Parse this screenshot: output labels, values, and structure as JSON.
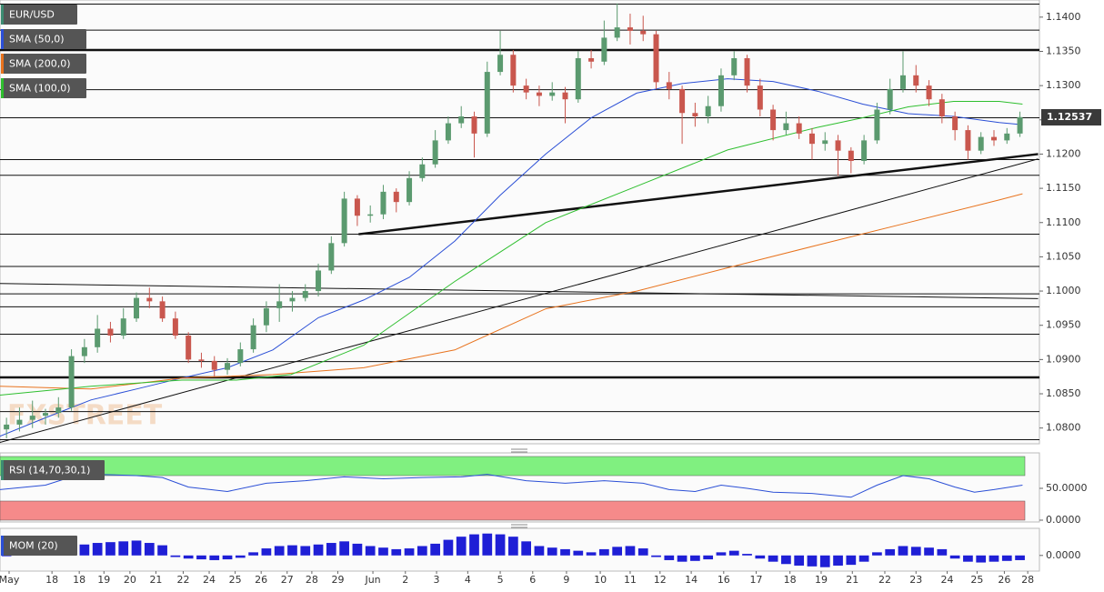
{
  "chart_data": [
    {
      "type": "candlestick",
      "title": "EUR/USD",
      "watermark": "FXSTREET",
      "xlim": [
        -0.5,
        79.5
      ],
      "xticks": [
        {
          "value": 0.2,
          "label": "May"
        },
        {
          "value": 3.5,
          "label": "18"
        },
        {
          "value": 5.6,
          "label": "18"
        },
        {
          "value": 7.5,
          "label": "19"
        },
        {
          "value": 9.5,
          "label": "20"
        },
        {
          "value": 11.5,
          "label": "21"
        },
        {
          "value": 13.6,
          "label": "22"
        },
        {
          "value": 15.6,
          "label": "24"
        },
        {
          "value": 17.6,
          "label": "25"
        },
        {
          "value": 19.6,
          "label": "26"
        },
        {
          "value": 21.6,
          "label": "27"
        },
        {
          "value": 23.5,
          "label": "28"
        },
        {
          "value": 25.5,
          "label": "29"
        },
        {
          "value": 28.2,
          "label": "Jun"
        },
        {
          "value": 30.7,
          "label": "2"
        },
        {
          "value": 33.1,
          "label": "3"
        },
        {
          "value": 35.5,
          "label": "4"
        },
        {
          "value": 38,
          "label": "5"
        },
        {
          "value": 40.5,
          "label": "6"
        },
        {
          "value": 43.1,
          "label": "9"
        },
        {
          "value": 45.7,
          "label": "10"
        },
        {
          "value": 48,
          "label": "11"
        },
        {
          "value": 50.3,
          "label": "12"
        },
        {
          "value": 52.7,
          "label": "14"
        },
        {
          "value": 55.2,
          "label": "16"
        },
        {
          "value": 57.7,
          "label": "17"
        },
        {
          "value": 60.3,
          "label": "18"
        },
        {
          "value": 62.7,
          "label": "19"
        },
        {
          "value": 65.1,
          "label": "21"
        },
        {
          "value": 67.6,
          "label": "22"
        },
        {
          "value": 70,
          "label": "23"
        },
        {
          "value": 72.4,
          "label": "24"
        },
        {
          "value": 74.7,
          "label": "25"
        },
        {
          "value": 76.8,
          "label": "26"
        },
        {
          "value": 78.6,
          "label": "28"
        }
      ],
      "ylim": [
        1.0777,
        1.1425
      ],
      "yticks": [
        {
          "value": 1.14,
          "label": "1.1400"
        },
        {
          "value": 1.135,
          "label": "1.1350"
        },
        {
          "value": 1.13,
          "label": "1.1300"
        },
        {
          "value": 1.125,
          "label": "1.1250"
        },
        {
          "value": 1.12,
          "label": "1.1200"
        },
        {
          "value": 1.115,
          "label": "1.1150"
        },
        {
          "value": 1.11,
          "label": "1.1100"
        },
        {
          "value": 1.105,
          "label": "1.1050"
        },
        {
          "value": 1.1,
          "label": "1.1000"
        },
        {
          "value": 1.095,
          "label": "1.0950"
        },
        {
          "value": 1.09,
          "label": "1.0900"
        },
        {
          "value": 1.085,
          "label": "1.0850"
        },
        {
          "value": 1.08,
          "label": "1.0800"
        }
      ],
      "up_color": "#5b9a6f",
      "down_color": "#c9574e",
      "ohlc": [
        [
          1.0798,
          1.0815,
          1.0785,
          1.0805
        ],
        [
          1.0805,
          1.083,
          1.0795,
          1.0812
        ],
        [
          1.0812,
          1.084,
          1.08,
          1.0818
        ],
        [
          1.0818,
          1.0828,
          1.0805,
          1.0822
        ],
        [
          1.0822,
          1.0845,
          1.0815,
          1.083
        ],
        [
          1.083,
          1.0915,
          1.0825,
          1.0905
        ],
        [
          1.0905,
          1.093,
          1.0895,
          1.0918
        ],
        [
          1.0918,
          1.0965,
          1.091,
          1.0945
        ],
        [
          1.0945,
          1.0955,
          1.0925,
          1.0935
        ],
        [
          1.0935,
          1.0975,
          1.093,
          1.096
        ],
        [
          1.096,
          1.0998,
          1.0955,
          1.099
        ],
        [
          1.099,
          1.1005,
          1.0975,
          1.0985
        ],
        [
          1.0985,
          1.0992,
          1.0955,
          1.096
        ],
        [
          1.096,
          1.097,
          1.093,
          1.0935
        ],
        [
          1.0935,
          1.094,
          1.0895,
          1.09
        ],
        [
          1.09,
          1.091,
          1.0888,
          1.0898
        ],
        [
          1.0898,
          1.0905,
          1.0875,
          1.0885
        ],
        [
          1.0885,
          1.0902,
          1.0878,
          1.0895
        ],
        [
          1.0895,
          1.0925,
          1.089,
          1.0915
        ],
        [
          1.0915,
          1.096,
          1.091,
          1.095
        ],
        [
          1.095,
          1.0985,
          1.094,
          1.0975
        ],
        [
          1.0975,
          1.101,
          1.0955,
          1.0985
        ],
        [
          1.0985,
          1.1,
          1.097,
          1.099
        ],
        [
          1.099,
          1.101,
          1.0985,
          1.1
        ],
        [
          1.1,
          1.104,
          1.0992,
          1.103
        ],
        [
          1.103,
          1.108,
          1.1025,
          1.107
        ],
        [
          1.107,
          1.1145,
          1.1065,
          1.1135
        ],
        [
          1.1135,
          1.114,
          1.1095,
          1.111
        ],
        [
          1.111,
          1.1125,
          1.11,
          1.1112
        ],
        [
          1.1112,
          1.1155,
          1.1105,
          1.1145
        ],
        [
          1.1145,
          1.115,
          1.1115,
          1.113
        ],
        [
          1.113,
          1.1175,
          1.1125,
          1.1165
        ],
        [
          1.1165,
          1.1195,
          1.116,
          1.1185
        ],
        [
          1.1185,
          1.1235,
          1.118,
          1.122
        ],
        [
          1.122,
          1.1255,
          1.1215,
          1.1245
        ],
        [
          1.1245,
          1.127,
          1.1238,
          1.1255
        ],
        [
          1.1255,
          1.1262,
          1.1195,
          1.123
        ],
        [
          1.123,
          1.1335,
          1.1225,
          1.132
        ],
        [
          1.132,
          1.138,
          1.1315,
          1.1345
        ],
        [
          1.1345,
          1.1352,
          1.129,
          1.13
        ],
        [
          1.13,
          1.131,
          1.128,
          1.129
        ],
        [
          1.129,
          1.13,
          1.127,
          1.1285
        ],
        [
          1.1285,
          1.1305,
          1.1278,
          1.129
        ],
        [
          1.129,
          1.1298,
          1.1245,
          1.128
        ],
        [
          1.128,
          1.135,
          1.1275,
          1.134
        ],
        [
          1.134,
          1.1352,
          1.1325,
          1.1335
        ],
        [
          1.1335,
          1.1395,
          1.133,
          1.137
        ],
        [
          1.137,
          1.142,
          1.1365,
          1.1385
        ],
        [
          1.1385,
          1.1405,
          1.136,
          1.138
        ],
        [
          1.138,
          1.1402,
          1.1365,
          1.1375
        ],
        [
          1.1375,
          1.138,
          1.1295,
          1.1305
        ],
        [
          1.1305,
          1.132,
          1.128,
          1.1295
        ],
        [
          1.1295,
          1.13,
          1.1215,
          1.126
        ],
        [
          1.126,
          1.1275,
          1.124,
          1.1255
        ],
        [
          1.1255,
          1.1285,
          1.1245,
          1.127
        ],
        [
          1.127,
          1.1325,
          1.1262,
          1.1315
        ],
        [
          1.1315,
          1.135,
          1.1308,
          1.134
        ],
        [
          1.134,
          1.1345,
          1.129,
          1.13
        ],
        [
          1.13,
          1.131,
          1.1255,
          1.1265
        ],
        [
          1.1265,
          1.1272,
          1.122,
          1.1235
        ],
        [
          1.1235,
          1.1262,
          1.1228,
          1.1245
        ],
        [
          1.1245,
          1.1255,
          1.1222,
          1.123
        ],
        [
          1.123,
          1.1238,
          1.1192,
          1.1215
        ],
        [
          1.1215,
          1.1232,
          1.1205,
          1.122
        ],
        [
          1.122,
          1.1228,
          1.1168,
          1.1205
        ],
        [
          1.1205,
          1.121,
          1.1172,
          1.119
        ],
        [
          1.119,
          1.1228,
          1.1185,
          1.122
        ],
        [
          1.122,
          1.1275,
          1.1215,
          1.1265
        ],
        [
          1.1265,
          1.131,
          1.1258,
          1.1295
        ],
        [
          1.1295,
          1.135,
          1.129,
          1.1315
        ],
        [
          1.1315,
          1.133,
          1.129,
          1.13
        ],
        [
          1.13,
          1.1308,
          1.127,
          1.128
        ],
        [
          1.128,
          1.1288,
          1.1245,
          1.1255
        ],
        [
          1.1255,
          1.1262,
          1.122,
          1.1235
        ],
        [
          1.1235,
          1.1242,
          1.1192,
          1.1205
        ],
        [
          1.1205,
          1.1232,
          1.12,
          1.1225
        ],
        [
          1.1225,
          1.1235,
          1.1212,
          1.122
        ],
        [
          1.122,
          1.1238,
          1.1215,
          1.123
        ],
        [
          1.123,
          1.1262,
          1.1225,
          1.1254
        ]
      ],
      "series": [
        {
          "name": "SMA (50,0)",
          "color": "#2b4fd6",
          "x": [
            -0.5,
            3,
            6.5,
            10,
            13.5,
            17,
            20.5,
            24,
            27.5,
            31,
            34.5,
            38,
            41.5,
            45,
            48.5,
            52,
            55.5,
            59,
            62.4,
            65.9,
            69.4,
            72.9,
            76.4,
            78.2
          ],
          "values": [
            1.0788,
            1.0815,
            1.0841,
            1.0857,
            1.0873,
            1.0888,
            1.0914,
            1.0961,
            1.0987,
            1.102,
            1.1073,
            1.114,
            1.12,
            1.1253,
            1.1289,
            1.1303,
            1.131,
            1.1306,
            1.1292,
            1.1273,
            1.1259,
            1.1255,
            1.1246,
            1.1243
          ]
        },
        {
          "name": "SMA (200,0)",
          "color": "#e8731e",
          "x": [
            -0.5,
            6.5,
            13.5,
            20.5,
            27.5,
            34.5,
            41.5,
            48.5,
            55.5,
            62.4,
            69.4,
            76.4,
            78.2
          ],
          "values": [
            1.0861,
            1.0857,
            1.0873,
            1.0878,
            1.0888,
            1.0914,
            1.0974,
            1.1,
            1.1034,
            1.1067,
            1.11,
            1.1133,
            1.1142
          ]
        },
        {
          "name": "SMA (100,0)",
          "color": "#2fbf2f",
          "x": [
            -0.5,
            6.5,
            13.5,
            17.7,
            21.9,
            27.5,
            34.5,
            41.5,
            48.5,
            55.5,
            62.4,
            65.9,
            69.4,
            72.9,
            76.4,
            78.2
          ],
          "values": [
            1.0848,
            1.0861,
            1.087,
            1.087,
            1.0878,
            1.0921,
            1.1014,
            1.11,
            1.1153,
            1.1206,
            1.1239,
            1.1253,
            1.1269,
            1.1277,
            1.1277,
            1.1273
          ]
        }
      ],
      "levels": [
        {
          "value": 1.1419,
          "bold": false
        },
        {
          "value": 1.1381,
          "bold": false
        },
        {
          "value": 1.1352,
          "bold": true
        },
        {
          "value": 1.1294,
          "bold": false
        },
        {
          "value": 1.1253,
          "bold": false
        },
        {
          "value": 1.1192,
          "bold": false
        },
        {
          "value": 1.1169,
          "bold": false
        },
        {
          "value": 1.1083,
          "bold": false
        },
        {
          "value": 1.1036,
          "bold": false
        },
        {
          "value": 1.0996,
          "bold": false
        },
        {
          "value": 1.0977,
          "bold": false
        },
        {
          "value": 1.0937,
          "bold": false
        },
        {
          "value": 1.0897,
          "bold": false
        },
        {
          "value": 1.0874,
          "bold": true
        },
        {
          "value": 1.0824,
          "bold": false
        },
        {
          "value": 1.0783,
          "bold": false
        }
      ],
      "trendlines": [
        {
          "x": [
            27.1,
            79.4
          ],
          "values": [
            1.1083,
            1.12
          ],
          "bold": true
        },
        {
          "x": [
            -0.5,
            79.4
          ],
          "values": [
            1.0779,
            1.1193
          ],
          "bold": false
        },
        {
          "x": [
            -0.5,
            79.4
          ],
          "values": [
            1.1011,
            1.0989
          ],
          "bold": false
        }
      ],
      "last_price": {
        "value": 1.12537,
        "label": "1.12537"
      }
    },
    {
      "type": "line",
      "title": "RSI (14,70,30,1)",
      "color": "#2b4fd6",
      "ylim": [
        0,
        100
      ],
      "yticks": [
        {
          "value": 50,
          "label": "50.0000"
        },
        {
          "value": 0,
          "label": "0.0000"
        }
      ],
      "bands": [
        {
          "range": [
            70,
            100
          ],
          "color": "#80f080"
        },
        {
          "range": [
            0,
            30
          ],
          "color": "#f58a8a"
        }
      ],
      "x": [
        -0.5,
        3,
        5,
        7,
        10,
        12,
        14,
        17,
        20,
        23,
        26,
        29,
        32,
        35,
        37,
        40,
        43,
        46,
        49,
        51,
        53,
        55,
        57,
        59,
        62,
        65,
        67,
        69,
        71,
        73,
        74.5,
        76,
        78.2
      ],
      "values": [
        48,
        55,
        68,
        72,
        70,
        67,
        52,
        45,
        58,
        62,
        68,
        65,
        67,
        68,
        72,
        62,
        58,
        62,
        58,
        48,
        45,
        55,
        50,
        44,
        42,
        36,
        55,
        70,
        65,
        52,
        44,
        48,
        55
      ]
    },
    {
      "type": "bar",
      "title": "MOM (20)",
      "color": "#1f1fd6",
      "ylim": [
        -0.02,
        0.03
      ],
      "yticks": [
        {
          "value": 0,
          "label": "0.0000"
        }
      ],
      "values": [
        -0.001,
        0.001,
        0.002,
        0.003,
        0.004,
        0.012,
        0.014,
        0.016,
        0.017,
        0.018,
        0.019,
        0.016,
        0.013,
        -0.002,
        -0.004,
        -0.005,
        -0.006,
        -0.005,
        -0.003,
        0.004,
        0.009,
        0.012,
        0.013,
        0.012,
        0.014,
        0.016,
        0.018,
        0.015,
        0.012,
        0.01,
        0.008,
        0.009,
        0.012,
        0.015,
        0.02,
        0.024,
        0.027,
        0.028,
        0.027,
        0.024,
        0.018,
        0.012,
        0.01,
        0.008,
        0.006,
        0.004,
        0.008,
        0.011,
        0.012,
        0.009,
        -0.002,
        -0.006,
        -0.008,
        -0.007,
        -0.005,
        0.004,
        0.006,
        0.002,
        -0.004,
        -0.008,
        -0.011,
        -0.013,
        -0.014,
        -0.015,
        -0.013,
        -0.012,
        -0.008,
        0.004,
        0.008,
        0.012,
        0.011,
        0.01,
        0.008,
        -0.004,
        -0.008,
        -0.009,
        -0.008,
        -0.007,
        -0.006
      ]
    }
  ]
}
